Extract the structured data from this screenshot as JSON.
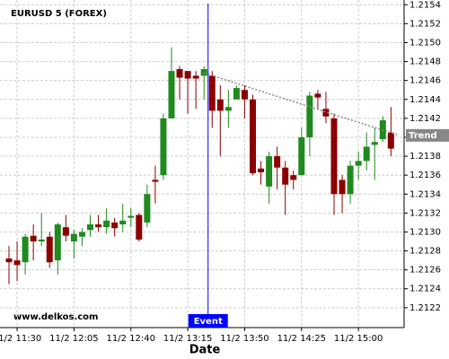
{
  "chart_data": {
    "type": "candlestick",
    "title": "EURUSD 5 (FOREX)",
    "x_label": "Date",
    "watermark": "www.delkos.com",
    "categories": [
      null,
      "11/2 11:30",
      null,
      null,
      null,
      null,
      null,
      null,
      "11/2 12:05",
      null,
      null,
      null,
      null,
      null,
      null,
      "11/2 12:40",
      null,
      null,
      null,
      null,
      null,
      null,
      "11/2 13:15",
      null,
      null,
      null,
      null,
      null,
      null,
      "11/2 13:50",
      null,
      null,
      null,
      null,
      null,
      null,
      "11/2 14:25",
      null,
      null,
      null,
      null,
      null,
      null,
      "11/2 15:00",
      null,
      null,
      null,
      null
    ],
    "open": [
      1.21272,
      1.2127,
      1.21268,
      1.21296,
      1.2129,
      1.21295,
      1.2127,
      1.21305,
      1.2129,
      1.21295,
      1.21302,
      1.21308,
      1.21305,
      1.2131,
      1.21308,
      1.21315,
      1.21318,
      1.2131,
      1.21355,
      1.2136,
      1.2142,
      1.21472,
      1.2147,
      1.21465,
      1.21465,
      1.21465,
      1.2144,
      1.21428,
      1.2144,
      1.2145,
      1.2144,
      1.21367,
      1.21348,
      1.2138,
      1.21368,
      1.2136,
      1.2136,
      1.214,
      1.21446,
      1.2143,
      1.2142,
      1.21355,
      1.2134,
      1.2137,
      1.21375,
      1.21392,
      1.21398,
      1.21405
    ],
    "high": [
      1.21285,
      1.2129,
      1.21298,
      1.21308,
      1.2132,
      1.213,
      1.2131,
      1.21318,
      1.21302,
      1.21304,
      1.21318,
      1.21318,
      1.21325,
      1.21315,
      1.2133,
      1.21325,
      1.2132,
      1.2135,
      1.2137,
      1.21425,
      1.21495,
      1.21475,
      1.2147,
      1.2147,
      1.21475,
      1.2147,
      1.21455,
      1.2145,
      1.21455,
      1.21455,
      1.21445,
      1.21375,
      1.21385,
      1.2139,
      1.21375,
      1.21365,
      1.2141,
      1.21448,
      1.2145,
      1.21448,
      1.21425,
      1.2136,
      1.21375,
      1.21385,
      1.21405,
      1.2141,
      1.21422,
      1.21432
    ],
    "low": [
      1.21245,
      1.21248,
      1.21255,
      1.2127,
      1.21285,
      1.21262,
      1.21255,
      1.2129,
      1.21272,
      1.21285,
      1.21295,
      1.213,
      1.21298,
      1.21295,
      1.213,
      1.21305,
      1.2129,
      1.21305,
      1.2133,
      1.21355,
      1.2142,
      1.2144,
      1.21425,
      1.2143,
      1.2144,
      1.2141,
      1.2138,
      1.2141,
      1.2144,
      1.2142,
      1.2136,
      1.2135,
      1.2133,
      1.21345,
      1.21318,
      1.21345,
      1.2136,
      1.2138,
      1.2143,
      1.21415,
      1.21318,
      1.2132,
      1.2133,
      1.21355,
      1.21365,
      1.21355,
      1.21395,
      1.2138
    ],
    "close": [
      1.21268,
      1.21265,
      1.21295,
      1.2129,
      1.21292,
      1.21268,
      1.21308,
      1.21296,
      1.21298,
      1.213,
      1.21308,
      1.21305,
      1.21312,
      1.21304,
      1.21312,
      1.21317,
      1.21292,
      1.2134,
      1.21353,
      1.2142,
      1.2147,
      1.21463,
      1.21462,
      1.21462,
      1.21472,
      1.21428,
      1.21428,
      1.21432,
      1.21452,
      1.2144,
      1.21362,
      1.21363,
      1.2138,
      1.21368,
      1.2135,
      1.21355,
      1.214,
      1.21444,
      1.21442,
      1.21422,
      1.2134,
      1.2134,
      1.2137,
      1.21375,
      1.2139,
      1.21395,
      1.21418,
      1.21388
    ],
    "up_color": "#1f8a1f",
    "down_color": "#8b0000",
    "ylim": [
      1.21199,
      1.21545
    ],
    "yticks": [
      1.2122,
      1.2124,
      1.2126,
      1.2128,
      {
        "value": 1.213,
        "label": "1.2130"
      },
      1.2132,
      1.2134,
      1.2136,
      1.2138,
      {
        "value": 1.214,
        "label": "1.2140"
      },
      1.2142,
      1.2144,
      1.2146,
      1.2148,
      {
        "value": 1.215,
        "label": "1.2150"
      },
      1.2152,
      1.2154
    ],
    "grid": true,
    "event": {
      "label": "Event",
      "x": 24.5,
      "color": "#0000ff"
    },
    "trend": {
      "name": "Trend",
      "x": [
        24,
        48
      ],
      "values": [
        1.21468,
        1.21402
      ],
      "color": "#888888"
    }
  }
}
